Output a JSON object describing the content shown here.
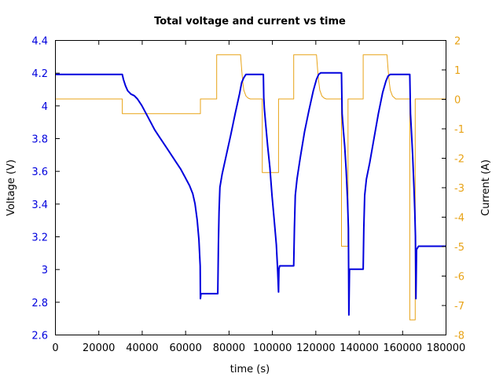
{
  "chart_data": {
    "type": "line",
    "title": "Total voltage and current vs time",
    "xlabel": "time (s)",
    "ylabel_left": "Voltage (V)",
    "ylabel_right": "Current (A)",
    "xlim": [
      0,
      180000
    ],
    "ylim_left": [
      2.6,
      4.4
    ],
    "ylim_right": [
      -8,
      2
    ],
    "x_ticks": [
      0,
      20000,
      40000,
      60000,
      80000,
      100000,
      120000,
      140000,
      160000,
      180000
    ],
    "x_tick_labels": [
      "0",
      "20000",
      "40000",
      "60000",
      "80000",
      "100000",
      "120000",
      "140000",
      "160000",
      "180000"
    ],
    "y_left_ticks": [
      2.6,
      2.8,
      3.0,
      3.2,
      3.4,
      3.6,
      3.8,
      4.0,
      4.2,
      4.4
    ],
    "y_left_tick_labels": [
      "2.6",
      "2.8",
      "3",
      "3.2",
      "3.4",
      "3.6",
      "3.8",
      "4",
      "4.2",
      "4.4"
    ],
    "y_right_ticks": [
      2,
      1,
      0,
      -1,
      -2,
      -3,
      -4,
      -5,
      -6,
      -7,
      -8
    ],
    "y_right_tick_labels": [
      "2",
      "1",
      "0",
      "-1",
      "-2",
      "-3",
      "-4",
      "-5",
      "-6",
      "-7",
      "-8"
    ],
    "grid": false,
    "colors": {
      "voltage": "#0000dd",
      "current": "#e8a317",
      "left_axis": "#0000dd",
      "right_axis": "#e8a317"
    },
    "series": [
      {
        "axis": "left",
        "x": [
          0,
          31000,
          31500,
          32500,
          33500,
          35000,
          36500,
          38000,
          40000,
          42000,
          44000,
          46000,
          48000,
          50000,
          52000,
          54000,
          56000,
          58000,
          60000,
          62000,
          63500,
          64500,
          65500,
          66300,
          66900,
          67000,
          67300,
          68000,
          72000,
          75000,
          75300,
          75600,
          76000,
          77000,
          79000,
          81000,
          83000,
          85000,
          86000,
          87000,
          88000,
          89000,
          90000,
          92000,
          94000,
          96000,
          96200,
          96500,
          97000,
          98000,
          99000,
          100000,
          101000,
          102000,
          102600,
          103000,
          103200,
          103500,
          104000,
          108000,
          110000,
          110300,
          110700,
          111500,
          113000,
          115000,
          117000,
          119000,
          120500,
          121500,
          122500,
          124000,
          126000,
          128000,
          130000,
          132000,
          132300,
          132800,
          133500,
          134200,
          134800,
          135200,
          135400,
          135700,
          136500,
          140000,
          142000,
          142300,
          142700,
          143500,
          145000,
          147000,
          149000,
          151000,
          152500,
          153500,
          154500,
          156000,
          158000,
          160000,
          162000,
          163500,
          163800,
          164200,
          164800,
          165400,
          165800,
          166100,
          166300,
          166600,
          167500,
          169000,
          172000,
          176000,
          180000
        ],
        "y": [
          4.19,
          4.19,
          4.16,
          4.12,
          4.09,
          4.07,
          4.06,
          4.04,
          4.0,
          3.95,
          3.9,
          3.85,
          3.81,
          3.77,
          3.73,
          3.69,
          3.65,
          3.61,
          3.56,
          3.51,
          3.46,
          3.4,
          3.3,
          3.18,
          3.02,
          2.82,
          2.85,
          2.85,
          2.85,
          2.85,
          3.15,
          3.35,
          3.5,
          3.58,
          3.7,
          3.82,
          3.95,
          4.07,
          4.14,
          4.17,
          4.19,
          4.19,
          4.19,
          4.19,
          4.19,
          4.19,
          4.05,
          3.98,
          3.9,
          3.75,
          3.62,
          3.45,
          3.3,
          3.15,
          2.99,
          2.86,
          3.0,
          3.02,
          3.02,
          3.02,
          3.02,
          3.25,
          3.45,
          3.55,
          3.68,
          3.84,
          3.97,
          4.09,
          4.16,
          4.19,
          4.2,
          4.2,
          4.2,
          4.2,
          4.2,
          4.2,
          3.95,
          3.86,
          3.75,
          3.6,
          3.42,
          3.25,
          2.72,
          3.0,
          3.0,
          3.0,
          3.0,
          3.25,
          3.45,
          3.55,
          3.65,
          3.8,
          3.95,
          4.08,
          4.15,
          4.18,
          4.19,
          4.19,
          4.19,
          4.19,
          4.19,
          4.19,
          3.95,
          3.85,
          3.7,
          3.5,
          3.35,
          3.2,
          2.82,
          3.12,
          3.14,
          3.14,
          3.14,
          3.14,
          3.14
        ]
      },
      {
        "axis": "right",
        "x": [
          0,
          31000,
          31000,
          67000,
          67000,
          74500,
          74500,
          85500,
          86000,
          86500,
          87000,
          88000,
          89000,
          90000,
          95500,
          95500,
          103000,
          103000,
          110000,
          110000,
          120500,
          121000,
          121500,
          122000,
          123000,
          124000,
          125000,
          132000,
          132000,
          135000,
          135000,
          142000,
          142000,
          153000,
          153500,
          154000,
          154500,
          155500,
          157000,
          163500,
          163500,
          166000,
          166000,
          180000
        ],
        "y": [
          0,
          0,
          -0.5,
          -0.5,
          0,
          0,
          1.5,
          1.5,
          1.0,
          0.6,
          0.3,
          0.1,
          0.03,
          0,
          0,
          -2.5,
          -2.5,
          0,
          0,
          1.5,
          1.5,
          1.0,
          0.6,
          0.3,
          0.1,
          0.03,
          0,
          0,
          -5,
          -5,
          0,
          0,
          1.5,
          1.5,
          1.0,
          0.6,
          0.3,
          0.1,
          0,
          0,
          -7.5,
          -7.5,
          0,
          0
        ]
      }
    ]
  }
}
